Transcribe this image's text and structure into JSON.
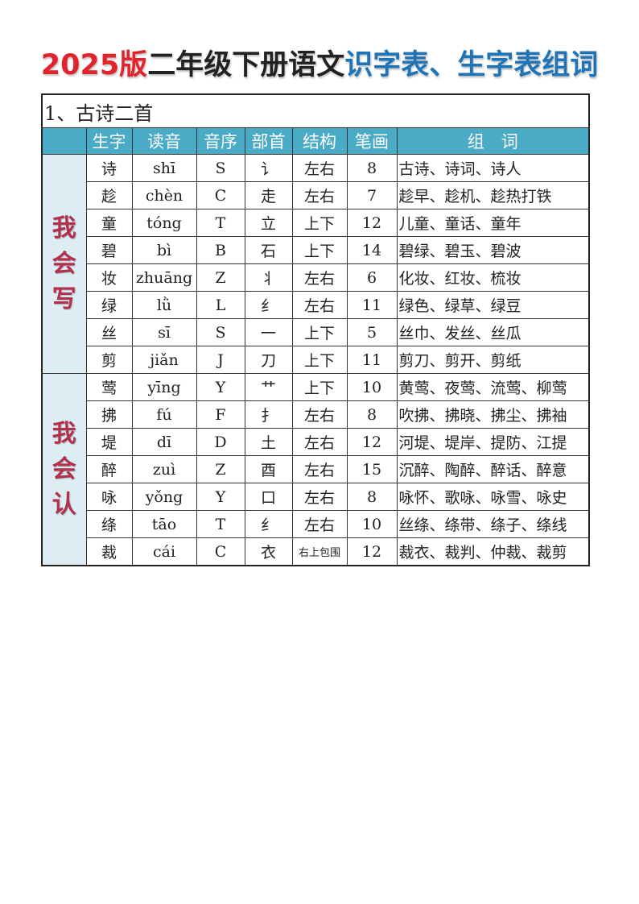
{
  "title": {
    "part1": "2025版",
    "part2": "二年级下册语文",
    "part3": "识字表、生字表组词"
  },
  "lesson": "1、古诗二首",
  "headers": [
    "",
    "生字",
    "读音",
    "音序",
    "部首",
    "结构",
    "笔画",
    "组　词"
  ],
  "groups": [
    {
      "label": "我会写",
      "rows": [
        [
          "诗",
          "shī",
          "S",
          "讠",
          "左右",
          "8",
          "古诗、诗词、诗人"
        ],
        [
          "趁",
          "chèn",
          "C",
          "走",
          "左右",
          "7",
          "趁早、趁机、趁热打铁"
        ],
        [
          "童",
          "tóng",
          "T",
          "立",
          "上下",
          "12",
          "儿童、童话、童年"
        ],
        [
          "碧",
          "bì",
          "B",
          "石",
          "上下",
          "14",
          "碧绿、碧玉、碧波"
        ],
        [
          "妆",
          "zhuāng",
          "Z",
          "丬",
          "左右",
          "6",
          "化妆、红妆、梳妆"
        ],
        [
          "绿",
          "lǜ",
          "L",
          "纟",
          "左右",
          "11",
          "绿色、绿草、绿豆"
        ],
        [
          "丝",
          "sī",
          "S",
          "一",
          "上下",
          "5",
          "丝巾、发丝、丝瓜"
        ],
        [
          "剪",
          "jiǎn",
          "J",
          "刀",
          "上下",
          "11",
          "剪刀、剪开、剪纸"
        ]
      ]
    },
    {
      "label": "我会认",
      "rows": [
        [
          "莺",
          "yīng",
          "Y",
          "艹",
          "上下",
          "10",
          "黄莺、夜莺、流莺、柳莺"
        ],
        [
          "拂",
          "fú",
          "F",
          "扌",
          "左右",
          "8",
          "吹拂、拂晓、拂尘、拂袖"
        ],
        [
          "堤",
          "dī",
          "D",
          "土",
          "左右",
          "12",
          "河堤、堤岸、提防、江提"
        ],
        [
          "醉",
          "zuì",
          "Z",
          "酉",
          "左右",
          "15",
          "沉醉、陶醉、醉话、醉意"
        ],
        [
          "咏",
          "yǒng",
          "Y",
          "口",
          "左右",
          "8",
          "咏怀、歌咏、咏雪、咏史"
        ],
        [
          "绦",
          "tāo",
          "T",
          "纟",
          "左右",
          "10",
          "丝绦、绦带、绦子、绦线"
        ],
        [
          "裁",
          "cái",
          "C",
          "衣",
          "右上包围",
          "12",
          "裁衣、裁判、仲裁、裁剪"
        ]
      ]
    }
  ],
  "colors": {
    "header_bg": "#4aabc7",
    "side_bg": "#dcedf4",
    "side_text": "#b2304b",
    "title_red": "#e3232c",
    "title_blue": "#1f74b8"
  }
}
